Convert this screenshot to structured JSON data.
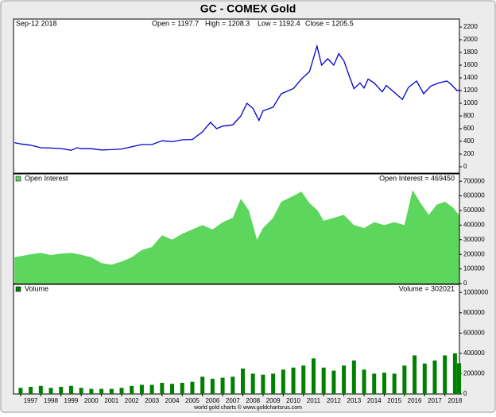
{
  "title": "GC - COMEX Gold",
  "footer": "world gold charts © www.goldchartsrus.com",
  "chart_data": [
    {
      "type": "line",
      "date_label": "Sep-12  2018",
      "stats": [
        "Open = 1197.7",
        "High = 1208.3",
        "Low = 1192.4",
        "Close = 1205.5"
      ],
      "color": "#0000cc",
      "xlim": [
        1996.65,
        2018.72
      ],
      "ylim": [
        -100,
        2325
      ],
      "yticks": [
        0,
        200,
        400,
        600,
        800,
        1000,
        1200,
        1400,
        1600,
        1800,
        2000,
        2200
      ],
      "x": [
        1996.7,
        1997.0,
        1997.5,
        1998.0,
        1998.5,
        1999.0,
        1999.5,
        1999.8,
        2000.0,
        2000.5,
        2001.0,
        2001.5,
        2002.0,
        2002.5,
        2003.0,
        2003.5,
        2004.0,
        2004.5,
        2005.0,
        2005.5,
        2006.0,
        2006.4,
        2006.7,
        2007.0,
        2007.5,
        2007.9,
        2008.2,
        2008.5,
        2008.8,
        2009.0,
        2009.5,
        2009.9,
        2010.5,
        2010.9,
        2011.3,
        2011.67,
        2011.9,
        2012.2,
        2012.5,
        2012.75,
        2013.0,
        2013.3,
        2013.5,
        2013.8,
        2014.0,
        2014.2,
        2014.5,
        2014.9,
        2015.1,
        2015.5,
        2015.9,
        2016.2,
        2016.6,
        2016.95,
        2017.3,
        2017.7,
        2018.1,
        2018.3,
        2018.6,
        2018.7
      ],
      "values": [
        380,
        360,
        340,
        300,
        295,
        287,
        260,
        300,
        285,
        285,
        265,
        270,
        280,
        315,
        350,
        350,
        410,
        395,
        425,
        430,
        550,
        700,
        600,
        640,
        660,
        800,
        1000,
        920,
        730,
        880,
        940,
        1150,
        1230,
        1380,
        1500,
        1900,
        1600,
        1700,
        1600,
        1780,
        1670,
        1400,
        1230,
        1320,
        1240,
        1380,
        1320,
        1180,
        1280,
        1170,
        1060,
        1250,
        1350,
        1150,
        1270,
        1320,
        1350,
        1300,
        1200,
        1205
      ]
    },
    {
      "type": "area",
      "value_label": "Open Interest = 469450",
      "xlim": [
        1996.65,
        2018.72
      ],
      "ylim": [
        0,
        750000
      ],
      "yticks": [
        0,
        100000,
        200000,
        300000,
        400000,
        500000,
        600000,
        700000
      ],
      "x": [
        1996.7,
        1997.5,
        1998.0,
        1998.5,
        1999.0,
        1999.5,
        1999.9,
        2000.5,
        2001.0,
        2001.5,
        2002.0,
        2002.5,
        2003.0,
        2003.5,
        2004.0,
        2004.5,
        2005.0,
        2005.5,
        2006.0,
        2006.5,
        2007.0,
        2007.5,
        2007.9,
        2008.3,
        2008.7,
        2009.0,
        2009.5,
        2009.9,
        2010.5,
        2010.9,
        2011.3,
        2011.7,
        2012.0,
        2012.5,
        2013.0,
        2013.5,
        2014.0,
        2014.5,
        2015.0,
        2015.5,
        2016.0,
        2016.4,
        2016.8,
        2017.2,
        2017.6,
        2018.0,
        2018.4,
        2018.7
      ],
      "series": [
        {
          "name": "Open Interest",
          "color": "#5cd65c",
          "values": [
            180000,
            200000,
            210000,
            195000,
            205000,
            210000,
            200000,
            180000,
            140000,
            130000,
            150000,
            180000,
            230000,
            250000,
            330000,
            300000,
            340000,
            370000,
            400000,
            370000,
            420000,
            450000,
            580000,
            500000,
            300000,
            380000,
            450000,
            560000,
            600000,
            630000,
            550000,
            500000,
            430000,
            450000,
            470000,
            400000,
            380000,
            420000,
            400000,
            420000,
            400000,
            640000,
            550000,
            470000,
            540000,
            560000,
            520000,
            469450
          ]
        }
      ]
    },
    {
      "type": "bar",
      "value_label": "Volume = 302021",
      "xlim": [
        1996.65,
        2018.72
      ],
      "ylim": [
        0,
        1080000
      ],
      "yticks": [
        0,
        200000,
        400000,
        600000,
        800000,
        1000000
      ],
      "xticks": [
        1997,
        1998,
        1999,
        2000,
        2001,
        2002,
        2003,
        2004,
        2005,
        2006,
        2007,
        2008,
        2009,
        2010,
        2011,
        2012,
        2013,
        2014,
        2015,
        2016,
        2017,
        2018
      ],
      "x": [
        1997.0,
        1997.5,
        1998.0,
        1998.5,
        1999.0,
        1999.5,
        2000.0,
        2000.5,
        2001.0,
        2001.5,
        2002.0,
        2002.5,
        2003.0,
        2003.5,
        2004.0,
        2004.5,
        2005.0,
        2005.5,
        2006.0,
        2006.5,
        2007.0,
        2007.5,
        2008.0,
        2008.5,
        2009.0,
        2009.5,
        2010.0,
        2010.5,
        2011.0,
        2011.5,
        2012.0,
        2012.5,
        2013.0,
        2013.5,
        2014.0,
        2014.5,
        2015.0,
        2015.5,
        2016.0,
        2016.5,
        2017.0,
        2017.5,
        2018.0,
        2018.5,
        2018.7
      ],
      "series": [
        {
          "name": "Volume",
          "color": "#008000",
          "values": [
            60000,
            70000,
            80000,
            60000,
            70000,
            80000,
            60000,
            50000,
            50000,
            50000,
            60000,
            80000,
            90000,
            90000,
            110000,
            100000,
            110000,
            120000,
            170000,
            150000,
            160000,
            170000,
            250000,
            200000,
            190000,
            200000,
            240000,
            260000,
            280000,
            350000,
            260000,
            230000,
            280000,
            330000,
            240000,
            200000,
            210000,
            200000,
            280000,
            380000,
            300000,
            330000,
            380000,
            400000,
            302021
          ]
        }
      ]
    }
  ]
}
